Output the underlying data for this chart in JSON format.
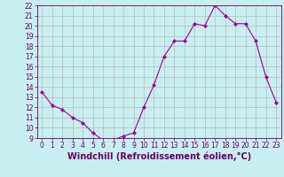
{
  "x": [
    0,
    1,
    2,
    3,
    4,
    5,
    6,
    7,
    8,
    9,
    10,
    11,
    12,
    13,
    14,
    15,
    16,
    17,
    18,
    19,
    20,
    21,
    22,
    23
  ],
  "y": [
    13.5,
    12.2,
    11.8,
    11.0,
    10.5,
    9.5,
    8.8,
    8.8,
    9.2,
    9.5,
    12.0,
    14.2,
    17.0,
    18.5,
    18.5,
    20.2,
    20.0,
    22.0,
    21.0,
    20.2,
    20.2,
    18.5,
    15.0,
    12.5
  ],
  "line_color": "#990099",
  "marker": "D",
  "markersize": 2,
  "bg_color": "#c8eef0",
  "grid_color": "#b0b0b0",
  "xlabel": "Windchill (Refroidissement éolien,°C)",
  "xlim": [
    -0.5,
    23.5
  ],
  "ylim": [
    9,
    22
  ],
  "yticks": [
    9,
    10,
    11,
    12,
    13,
    14,
    15,
    16,
    17,
    18,
    19,
    20,
    21,
    22
  ],
  "xticks": [
    0,
    1,
    2,
    3,
    4,
    5,
    6,
    7,
    8,
    9,
    10,
    11,
    12,
    13,
    14,
    15,
    16,
    17,
    18,
    19,
    20,
    21,
    22,
    23
  ],
  "xlabel_fontsize": 7,
  "tick_fontsize": 5.5,
  "axis_label_color": "#660066",
  "tick_color": "#660066",
  "spine_color": "#660066"
}
